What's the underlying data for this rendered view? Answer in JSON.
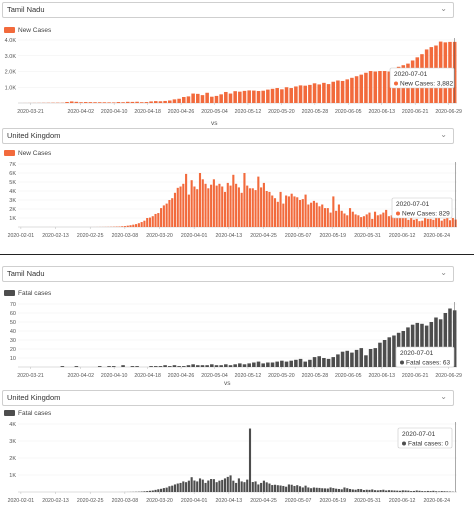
{
  "colors": {
    "cases": "#f26a3c",
    "fatal": "#4d4d4d",
    "accent_cursor": "#333333"
  },
  "separator_label": "vs",
  "panels": [
    {
      "selector": {
        "value": "Tamil Nadu",
        "chevron_icon": "chevron-down-icon"
      },
      "legend_label": "New Cases",
      "tooltip": {
        "date": "2020-07-01",
        "label": "New Cases: 3,882"
      }
    },
    {
      "selector": {
        "value": "United Kingdom",
        "chevron_icon": "chevron-down-icon"
      },
      "legend_label": "New Cases",
      "tooltip": {
        "date": "2020-07-01",
        "label": "New Cases: 829"
      }
    },
    {
      "selector": {
        "value": "Tamil Nadu",
        "chevron_icon": "chevron-down-icon"
      },
      "legend_label": "Fatal cases",
      "tooltip": {
        "date": "2020-07-01",
        "label": "Fatal cases: 63"
      }
    },
    {
      "selector": {
        "value": "United Kingdom",
        "chevron_icon": "chevron-down-icon"
      },
      "legend_label": "Fatal cases",
      "tooltip": {
        "date": "2020-07-01",
        "label": "Fatal cases: 0"
      }
    }
  ],
  "chart_data": [
    {
      "type": "bar",
      "series": [
        {
          "name": "New Cases"
        }
      ],
      "yticks": [
        "1.0K",
        "2.0K",
        "3.0K",
        "4.0K"
      ],
      "ylim": [
        0,
        4000
      ],
      "xticks": [
        "2020-03-21",
        "2020-04-02",
        "2020-04-10",
        "2020-04-18",
        "2020-04-26",
        "2020-05-04",
        "2020-05-12",
        "2020-05-20",
        "2020-05-28",
        "2020-06-05",
        "2020-06-13",
        "2020-06-21",
        "2020-06-29"
      ],
      "x_start": "2020-03-18",
      "x_end": "2020-07-01",
      "values": [
        1,
        3,
        5,
        7,
        9,
        12,
        15,
        18,
        20,
        17,
        65,
        100,
        75,
        50,
        60,
        55,
        50,
        48,
        45,
        40,
        35,
        60,
        50,
        75,
        70,
        80,
        50,
        60,
        100,
        120,
        110,
        130,
        160,
        230,
        270,
        380,
        420,
        600,
        580,
        500,
        650,
        400,
        450,
        550,
        700,
        600,
        750,
        720,
        770,
        800,
        790,
        760,
        780,
        850,
        900,
        950,
        870,
        1000,
        950,
        1050,
        1120,
        1100,
        1150,
        1250,
        1180,
        1280,
        1200,
        1350,
        1430,
        1400,
        1500,
        1600,
        1700,
        1800,
        1920,
        2030,
        2000,
        2030,
        2030,
        2000,
        1950,
        2300,
        2400,
        2500,
        2700,
        2900,
        3100,
        3400,
        3550,
        3650,
        3900,
        3850,
        3880,
        3882
      ]
    },
    {
      "type": "bar",
      "series": [
        {
          "name": "New Cases"
        }
      ],
      "yticks": [
        "1K",
        "2K",
        "3K",
        "4K",
        "5K",
        "6K",
        "7K"
      ],
      "ylim": [
        0,
        7000
      ],
      "xticks": [
        "2020-02-01",
        "2020-02-13",
        "2020-02-25",
        "2020-03-08",
        "2020-03-20",
        "2020-04-01",
        "2020-04-13",
        "2020-04-25",
        "2020-05-07",
        "2020-05-19",
        "2020-05-31",
        "2020-06-12",
        "2020-06-24"
      ],
      "x_start": "2020-01-31",
      "x_end": "2020-07-01",
      "values": [
        2,
        0,
        0,
        0,
        0,
        0,
        0,
        1,
        0,
        0,
        1,
        2,
        0,
        0,
        0,
        0,
        0,
        0,
        0,
        0,
        0,
        0,
        0,
        0,
        0,
        0,
        2,
        3,
        5,
        8,
        10,
        15,
        20,
        25,
        35,
        48,
        52,
        80,
        100,
        150,
        200,
        260,
        320,
        420,
        550,
        700,
        1000,
        1050,
        1200,
        1450,
        1550,
        2100,
        2400,
        2600,
        3000,
        3200,
        3800,
        4350,
        4500,
        4800,
        5900,
        3600,
        5200,
        4500,
        4200,
        6000,
        5300,
        4800,
        4300,
        4700,
        5300,
        4600,
        4800,
        4500,
        3900,
        4900,
        4600,
        5800,
        4800,
        4400,
        3800,
        6000,
        4600,
        4300,
        4300,
        4100,
        5600,
        4400,
        4900,
        4000,
        3900,
        3500,
        3200,
        2800,
        3900,
        2600,
        3500,
        3400,
        3700,
        3400,
        3300,
        3000,
        3100,
        3600,
        2500,
        2700,
        2900,
        2700,
        2300,
        2500,
        2100,
        2100,
        1600,
        3400,
        1800,
        2500,
        1800,
        1500,
        1300,
        2100,
        1700,
        1400,
        1300,
        1100,
        1200,
        1400,
        1600,
        900,
        1700,
        1300,
        1400,
        1600,
        1900,
        1200,
        1300,
        1000,
        1200,
        1400,
        1100,
        1500,
        800,
        1000,
        800,
        900,
        650,
        700,
        1000,
        900,
        900,
        800,
        1200,
        1000,
        700,
        900,
        1100,
        750,
        1000,
        829
      ]
    },
    {
      "type": "bar",
      "series": [
        {
          "name": "Fatal cases"
        }
      ],
      "yticks": [
        "10",
        "20",
        "30",
        "40",
        "50",
        "60",
        "70"
      ],
      "ylim": [
        0,
        70
      ],
      "xticks": [
        "2020-03-21",
        "2020-04-02",
        "2020-04-10",
        "2020-04-18",
        "2020-04-26",
        "2020-05-04",
        "2020-05-12",
        "2020-05-20",
        "2020-05-28",
        "2020-06-05",
        "2020-06-13",
        "2020-06-21",
        "2020-06-29"
      ],
      "x_start": "2020-03-18",
      "x_end": "2020-07-01",
      "values": [
        0,
        0,
        0,
        0,
        0,
        0,
        0,
        0,
        0,
        1,
        0,
        0,
        1,
        0,
        0,
        0,
        0,
        1,
        0,
        1,
        1,
        0,
        2,
        0,
        1,
        1,
        0,
        0,
        1,
        1,
        1,
        2,
        1,
        2,
        1,
        1,
        2,
        3,
        2,
        2,
        2,
        3,
        2,
        2,
        3,
        2,
        3,
        4,
        3,
        4,
        5,
        6,
        4,
        5,
        5,
        6,
        7,
        6,
        7,
        8,
        9,
        6,
        8,
        11,
        12,
        10,
        9,
        11,
        14,
        17,
        18,
        16,
        19,
        21,
        13,
        20,
        21,
        27,
        30,
        33,
        35,
        38,
        40,
        44,
        47,
        49,
        48,
        46,
        50,
        55,
        53,
        60,
        65,
        63
      ]
    },
    {
      "type": "bar",
      "series": [
        {
          "name": "Fatal cases"
        }
      ],
      "yticks": [
        "1K",
        "2K",
        "3K",
        "4K"
      ],
      "ylim": [
        0,
        4500
      ],
      "xticks": [
        "2020-02-01",
        "2020-02-13",
        "2020-02-25",
        "2020-03-08",
        "2020-03-20",
        "2020-04-01",
        "2020-04-13",
        "2020-04-25",
        "2020-05-07",
        "2020-05-19",
        "2020-05-31",
        "2020-06-12",
        "2020-06-24"
      ],
      "x_start": "2020-01-31",
      "x_end": "2020-07-01",
      "values": [
        0,
        0,
        0,
        0,
        0,
        0,
        0,
        0,
        0,
        0,
        0,
        0,
        0,
        0,
        0,
        0,
        0,
        0,
        0,
        0,
        0,
        0,
        0,
        0,
        0,
        0,
        0,
        0,
        0,
        0,
        0,
        0,
        0,
        0,
        0,
        0,
        1,
        2,
        3,
        5,
        8,
        11,
        15,
        20,
        30,
        45,
        60,
        80,
        100,
        140,
        180,
        210,
        260,
        290,
        380,
        420,
        500,
        560,
        600,
        700,
        650,
        750,
        980,
        760,
        700,
        900,
        820,
        600,
        760,
        860,
        850,
        650,
        750,
        800,
        900,
        1000,
        1100,
        750,
        600,
        900,
        700,
        650,
        820,
        4200,
        660,
        700,
        500,
        600,
        750,
        640,
        560,
        460,
        480,
        450,
        430,
        400,
        350,
        500,
        480,
        400,
        450,
        380,
        300,
        420,
        300,
        250,
        300,
        280,
        270,
        250,
        240,
        230,
        300,
        260,
        220,
        200,
        180,
        300,
        250,
        200,
        170,
        150,
        200,
        190,
        130,
        150,
        140,
        170,
        120,
        110,
        130,
        150,
        100,
        120,
        110,
        100,
        90,
        80,
        110,
        100,
        90,
        60,
        70,
        100,
        80,
        60,
        50,
        70,
        60,
        80,
        50,
        40,
        60,
        50,
        40,
        30,
        20,
        0
      ]
    }
  ]
}
